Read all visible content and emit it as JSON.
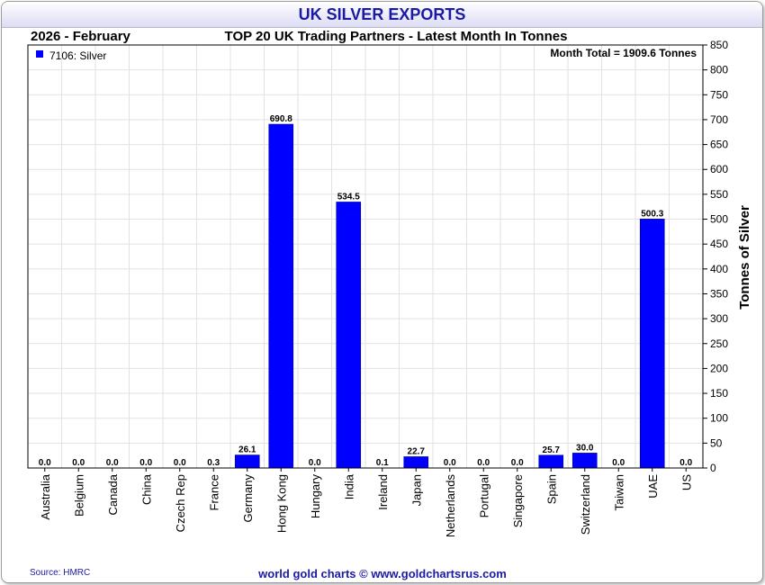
{
  "header": {
    "title": "UK SILVER EXPORTS",
    "period": "2026 - February",
    "subtitle": "TOP 20 UK Trading Partners - Latest Month In Tonnes"
  },
  "legend": {
    "label": "7106: Silver",
    "color": "#0000ff",
    "position": "top-left"
  },
  "annotation": "Month Total = 1909.6 Tonnes",
  "footer": {
    "source": "Source: HMRC",
    "credit": "world gold charts © www.goldchartsrus.com"
  },
  "chart_data": {
    "type": "bar",
    "title": "TOP 20 UK Trading Partners - Latest Month In Tonnes",
    "ylabel": "Tonnes of Silver",
    "ylim": [
      0,
      850
    ],
    "ytick_step": 50,
    "y_axis_side": "right",
    "grid": true,
    "bar_color": "#0000ff",
    "categories": [
      "Australia",
      "Belgium",
      "Canada",
      "China",
      "Czech Rep",
      "France",
      "Germany",
      "Hong Kong",
      "Hungary",
      "India",
      "Ireland",
      "Japan",
      "Netherlands",
      "Portugal",
      "Singapore",
      "Spain",
      "Switzerland",
      "Taiwan",
      "UAE",
      "US"
    ],
    "values": [
      0.0,
      0.0,
      0.0,
      0.0,
      0.0,
      0.3,
      26.1,
      690.8,
      0.0,
      534.5,
      0.1,
      22.7,
      0.0,
      0.0,
      0.0,
      25.7,
      30.0,
      0.0,
      500.3,
      0.0
    ],
    "value_labels": [
      "0.0",
      "0.0",
      "0.0",
      "0.0",
      "0.0",
      "0.3",
      "26.1",
      "690.8",
      "0.0",
      "534.5",
      "0.1",
      "22.7",
      "0.0",
      "0.0",
      "0.0",
      "25.7",
      "30.0",
      "0.0",
      "500.3",
      "0.0"
    ]
  }
}
